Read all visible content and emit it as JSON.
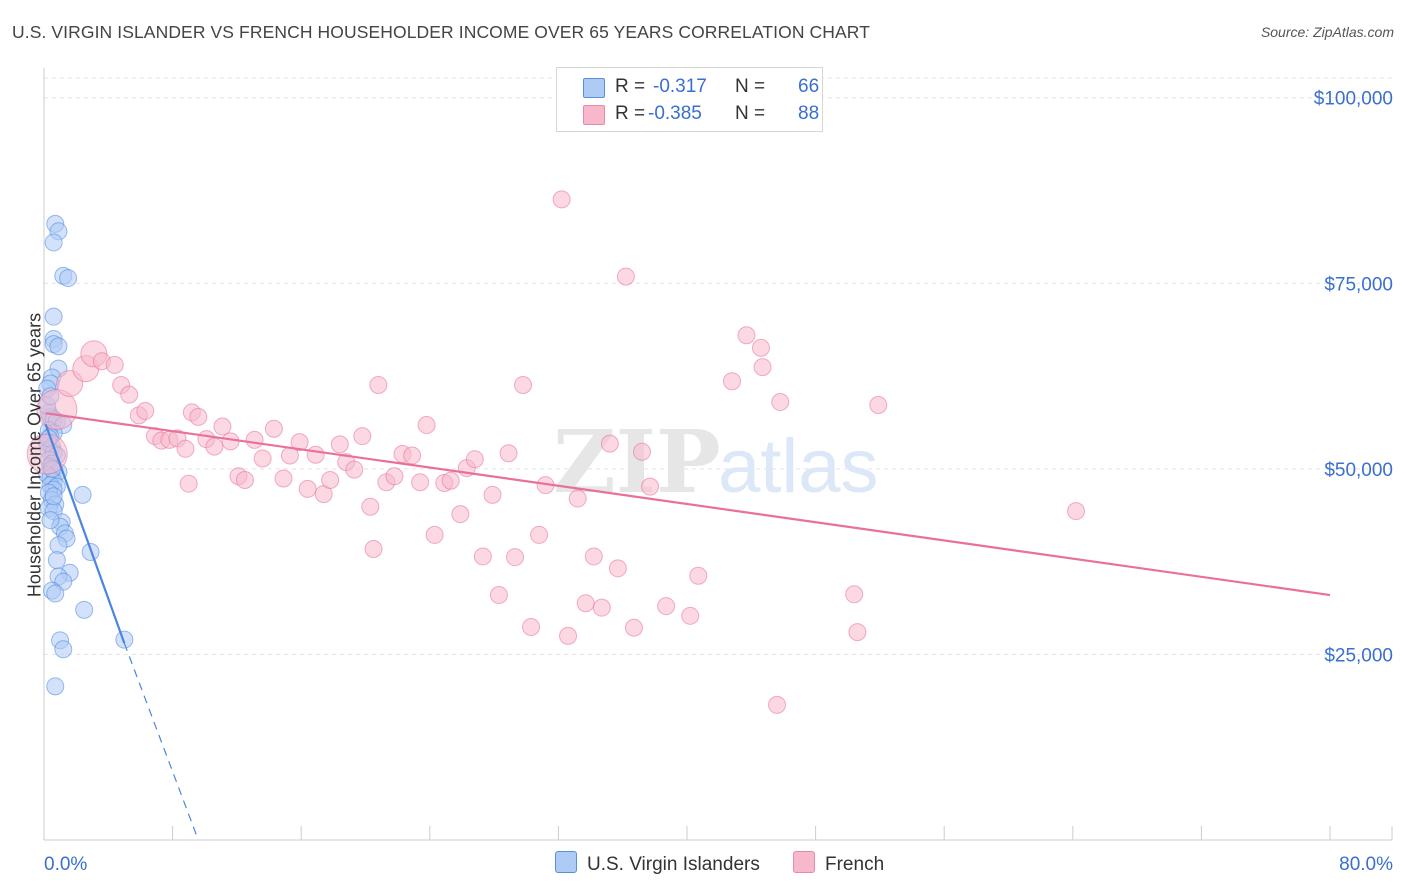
{
  "header": {
    "title": "U.S. VIRGIN ISLANDER VS FRENCH HOUSEHOLDER INCOME OVER 65 YEARS CORRELATION CHART",
    "source": "Source: ZipAtlas.com"
  },
  "watermark": "ZIPatlas",
  "legend": {
    "series": [
      {
        "swatch_color": "#aecbf5",
        "r_label": "R =",
        "r_value": "-0.317",
        "n_label": "N =",
        "n_value": "66"
      },
      {
        "swatch_color": "#f7b8cb",
        "r_label": "R =",
        "r_value": "-0.385",
        "n_label": "N =",
        "n_value": "88"
      }
    ]
  },
  "bottom_legend": [
    "U.S. Virgin Islanders",
    "French"
  ],
  "chart_data": {
    "type": "scatter",
    "title": "U.S. VIRGIN ISLANDER VS FRENCH HOUSEHOLDER INCOME OVER 65 YEARS CORRELATION CHART",
    "xlabel": "",
    "ylabel": "Householder Income Over 65 years",
    "xlim": [
      0,
      80
    ],
    "ylim": [
      0,
      104000
    ],
    "x_tick_labels": [
      "0.0%",
      "80.0%"
    ],
    "y_ticks": [
      25000,
      50000,
      75000,
      100000
    ],
    "y_tick_labels": [
      "$25,000",
      "$50,000",
      "$75,000",
      "$100,000"
    ],
    "grid": true,
    "series": [
      {
        "name": "U.S. Virgin Islanders",
        "color": "#4a86e0",
        "fill": "#aecbf5",
        "R": -0.317,
        "N": 66,
        "trend": {
          "x0": 0.1,
          "y0": 56000,
          "x1": 5.0,
          "y1": 26500,
          "dash_to_x": 9.6,
          "dash_to_y": -1000
        },
        "points": [
          [
            0.7,
            83000
          ],
          [
            0.9,
            82000
          ],
          [
            0.6,
            80500
          ],
          [
            1.2,
            76000
          ],
          [
            1.5,
            75700
          ],
          [
            0.6,
            70500
          ],
          [
            0.6,
            67500
          ],
          [
            0.6,
            66800
          ],
          [
            0.9,
            66500
          ],
          [
            0.9,
            63500
          ],
          [
            0.5,
            62300
          ],
          [
            0.4,
            61500
          ],
          [
            0.2,
            60800
          ],
          [
            0.3,
            57500
          ],
          [
            0.4,
            57000
          ],
          [
            0.6,
            56700
          ],
          [
            0.8,
            56400
          ],
          [
            1.2,
            55900
          ],
          [
            0.3,
            55200
          ],
          [
            0.6,
            54800
          ],
          [
            0.4,
            54300
          ],
          [
            0.2,
            53500
          ],
          [
            0.5,
            53000
          ],
          [
            0.3,
            52500
          ],
          [
            0.6,
            52200
          ],
          [
            0.8,
            51800
          ],
          [
            0.3,
            51200
          ],
          [
            0.5,
            50700
          ],
          [
            0.4,
            50300
          ],
          [
            0.6,
            49900
          ],
          [
            0.9,
            49600
          ],
          [
            0.2,
            49200
          ],
          [
            0.4,
            48800
          ],
          [
            0.6,
            48300
          ],
          [
            0.4,
            47800
          ],
          [
            0.8,
            47600
          ],
          [
            0.6,
            47200
          ],
          [
            0.3,
            46800
          ],
          [
            2.4,
            46500
          ],
          [
            0.5,
            45800
          ],
          [
            0.7,
            45200
          ],
          [
            0.3,
            44700
          ],
          [
            0.6,
            44300
          ],
          [
            1.1,
            42800
          ],
          [
            1.0,
            42200
          ],
          [
            1.3,
            41300
          ],
          [
            1.4,
            40600
          ],
          [
            0.9,
            39700
          ],
          [
            2.9,
            38800
          ],
          [
            0.8,
            37700
          ],
          [
            1.6,
            36000
          ],
          [
            0.9,
            35500
          ],
          [
            1.2,
            34800
          ],
          [
            0.5,
            33600
          ],
          [
            0.7,
            33200
          ],
          [
            2.5,
            31000
          ],
          [
            1.0,
            26900
          ],
          [
            1.2,
            25700
          ],
          [
            5.0,
            27000
          ],
          [
            0.7,
            20700
          ],
          [
            0.2,
            58500
          ],
          [
            0.4,
            59800
          ],
          [
            0.3,
            54100
          ],
          [
            0.5,
            50000
          ],
          [
            0.6,
            46300
          ],
          [
            0.4,
            43100
          ]
        ]
      },
      {
        "name": "French",
        "color": "#e8709b",
        "fill": "#f7b8cb",
        "R": -0.385,
        "N": 88,
        "trend": {
          "x0": 0.1,
          "y0": 57500,
          "x1": 80.0,
          "y1": 33000
        },
        "points": [
          [
            0.2,
            52000
          ],
          [
            0.8,
            58000
          ],
          [
            1.6,
            61500
          ],
          [
            2.6,
            63500
          ],
          [
            3.1,
            65500
          ],
          [
            3.6,
            64500
          ],
          [
            4.4,
            64000
          ],
          [
            4.8,
            61300
          ],
          [
            5.3,
            60000
          ],
          [
            5.9,
            57200
          ],
          [
            6.3,
            57800
          ],
          [
            6.9,
            54400
          ],
          [
            7.3,
            53800
          ],
          [
            7.8,
            53900
          ],
          [
            8.3,
            54100
          ],
          [
            8.8,
            52700
          ],
          [
            9.2,
            57600
          ],
          [
            9.6,
            57000
          ],
          [
            10.1,
            54000
          ],
          [
            10.6,
            53000
          ],
          [
            11.1,
            55700
          ],
          [
            11.6,
            53700
          ],
          [
            12.1,
            49000
          ],
          [
            12.5,
            48500
          ],
          [
            13.1,
            53900
          ],
          [
            13.6,
            51400
          ],
          [
            14.3,
            55400
          ],
          [
            14.9,
            48700
          ],
          [
            15.3,
            51800
          ],
          [
            15.9,
            53600
          ],
          [
            16.4,
            47300
          ],
          [
            16.9,
            51900
          ],
          [
            17.4,
            46600
          ],
          [
            17.8,
            48500
          ],
          [
            18.4,
            53300
          ],
          [
            18.8,
            50900
          ],
          [
            19.3,
            49900
          ],
          [
            19.8,
            54400
          ],
          [
            20.3,
            44900
          ],
          [
            20.8,
            61300
          ],
          [
            21.3,
            48200
          ],
          [
            21.8,
            49000
          ],
          [
            22.3,
            52000
          ],
          [
            22.9,
            51800
          ],
          [
            23.4,
            48200
          ],
          [
            23.8,
            55900
          ],
          [
            24.3,
            41100
          ],
          [
            24.9,
            48100
          ],
          [
            25.3,
            48400
          ],
          [
            25.9,
            43900
          ],
          [
            26.3,
            50100
          ],
          [
            26.8,
            51300
          ],
          [
            27.3,
            38200
          ],
          [
            27.9,
            46500
          ],
          [
            28.3,
            33000
          ],
          [
            28.9,
            52100
          ],
          [
            29.3,
            38100
          ],
          [
            29.8,
            61300
          ],
          [
            30.3,
            28700
          ],
          [
            30.8,
            41100
          ],
          [
            31.2,
            47800
          ],
          [
            32.2,
            86300
          ],
          [
            32.6,
            27500
          ],
          [
            33.2,
            46000
          ],
          [
            33.7,
            31900
          ],
          [
            34.2,
            38200
          ],
          [
            34.7,
            31300
          ],
          [
            35.2,
            53400
          ],
          [
            35.7,
            36600
          ],
          [
            36.2,
            75900
          ],
          [
            36.7,
            28600
          ],
          [
            37.2,
            52300
          ],
          [
            37.7,
            47600
          ],
          [
            38.7,
            31500
          ],
          [
            40.2,
            30200
          ],
          [
            40.7,
            35600
          ],
          [
            42.8,
            61800
          ],
          [
            43.7,
            68000
          ],
          [
            44.6,
            66300
          ],
          [
            44.7,
            63700
          ],
          [
            45.6,
            18200
          ],
          [
            45.8,
            59000
          ],
          [
            50.4,
            33100
          ],
          [
            50.6,
            28000
          ],
          [
            51.9,
            58600
          ],
          [
            64.2,
            44300
          ],
          [
            20.5,
            39200
          ],
          [
            9.0,
            48000
          ]
        ]
      }
    ]
  }
}
